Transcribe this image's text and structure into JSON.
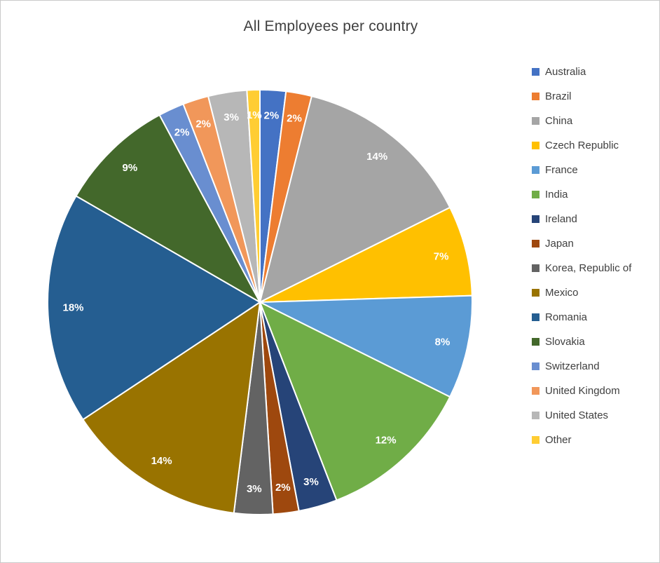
{
  "chart_data": {
    "type": "pie",
    "title": "All Employees per country",
    "legend_position": "right",
    "units": "percent",
    "start_angle_deg": 0,
    "direction": "clockwise",
    "label_color": "#FFFFFF",
    "categories": [
      "Australia",
      "Brazil",
      "China",
      "Czech Republic",
      "France",
      "India",
      "Ireland",
      "Japan",
      "Korea, Republic of",
      "Mexico",
      "Romania",
      "Slovakia",
      "Switzerland",
      "United Kingdom",
      "United States",
      "Other"
    ],
    "values": [
      2,
      2,
      14,
      7,
      8,
      12,
      3,
      2,
      3,
      14,
      18,
      9,
      2,
      2,
      3,
      1
    ],
    "labels": [
      "2%",
      "2%",
      "14%",
      "7%",
      "8%",
      "12%",
      "3%",
      "2%",
      "3%",
      "14%",
      "18%",
      "9%",
      "2%",
      "2%",
      "3%",
      "1%"
    ],
    "colors": [
      "#4472C4",
      "#ED7D31",
      "#A5A5A5",
      "#FFC000",
      "#5B9BD5",
      "#70AD47",
      "#264478",
      "#9E480E",
      "#636363",
      "#997300",
      "#255E91",
      "#43682B",
      "#698ED0",
      "#F1975A",
      "#B7B7B7",
      "#FFCD33"
    ]
  }
}
